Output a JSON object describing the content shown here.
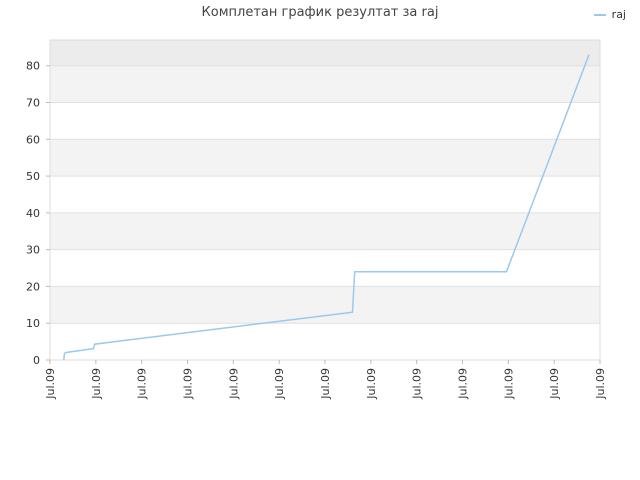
{
  "chart_data": {
    "type": "line",
    "title": "Комплетан график резултат за raj",
    "xlabel": "",
    "ylabel": "",
    "ylim": [
      0,
      87
    ],
    "yticks": [
      0,
      10,
      20,
      30,
      40,
      50,
      60,
      70,
      80
    ],
    "xticks": [
      "Jul.09",
      "Jul.09",
      "Jul.09",
      "Jul.09",
      "Jul.09",
      "Jul.09",
      "Jul.09",
      "Jul.09",
      "Jul.09",
      "Jul.09",
      "Jul.09",
      "Jul.09",
      "Jul.09"
    ],
    "xlim": [
      0,
      100
    ],
    "grid": true,
    "legend_position": "top-right",
    "series": [
      {
        "name": "raj",
        "color": "#99c9ef",
        "x": [
          2.5,
          2.6,
          2.8,
          7.9,
          8.1,
          55.0,
          55.4,
          83.0,
          98.0
        ],
        "y": [
          0,
          1.5,
          2.0,
          3.1,
          4.3,
          13.0,
          24.0,
          24.0,
          83.0
        ]
      }
    ]
  }
}
